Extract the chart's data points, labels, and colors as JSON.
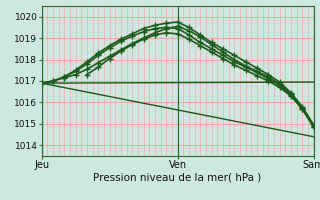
{
  "xlabel": "Pression niveau de la mer( hPa )",
  "bg_color": "#cce8e0",
  "plot_bg_color": "#cce8e0",
  "grid_color_h": "#ff9999",
  "grid_color_v": "#ff9999",
  "line_color": "#1a5c1a",
  "ylim": [
    1013.5,
    1020.5
  ],
  "yticks": [
    1014,
    1015,
    1016,
    1017,
    1018,
    1019,
    1020
  ],
  "xtick_labels": [
    "Jeu",
    "Ven",
    "Sam"
  ],
  "xtick_positions": [
    0,
    24,
    48
  ],
  "vline_positions": [
    0,
    24,
    48
  ],
  "series": [
    {
      "x": [
        0,
        2,
        4,
        6,
        8,
        10,
        12,
        14,
        16,
        18,
        20,
        22,
        24,
        26,
        28,
        30,
        32,
        34,
        36,
        38,
        40,
        42,
        44,
        46,
        48
      ],
      "y": [
        1016.9,
        1017.0,
        1017.15,
        1017.3,
        1017.55,
        1017.85,
        1018.15,
        1018.45,
        1018.75,
        1019.0,
        1019.25,
        1019.45,
        1019.55,
        1019.35,
        1019.05,
        1018.7,
        1018.35,
        1018.0,
        1017.7,
        1017.45,
        1017.2,
        1016.85,
        1016.4,
        1015.75,
        1014.9
      ],
      "marker": "+",
      "linewidth": 1.2,
      "markersize": 4,
      "linestyle": "-"
    },
    {
      "x": [
        0,
        2,
        4,
        6,
        8,
        10,
        12,
        14,
        16,
        18,
        20,
        22,
        24,
        26,
        28,
        30,
        32,
        34,
        36,
        38,
        40,
        42,
        44,
        46,
        48
      ],
      "y": [
        1016.9,
        1017.0,
        1017.2,
        1017.5,
        1017.9,
        1018.3,
        1018.65,
        1018.95,
        1019.2,
        1019.45,
        1019.6,
        1019.7,
        1019.75,
        1019.5,
        1019.15,
        1018.8,
        1018.5,
        1018.2,
        1017.9,
        1017.6,
        1017.3,
        1016.95,
        1016.45,
        1015.8,
        1014.95
      ],
      "marker": "+",
      "linewidth": 1.2,
      "markersize": 4,
      "linestyle": "-"
    },
    {
      "x": [
        4,
        6,
        8,
        10,
        12,
        14,
        16,
        18,
        20,
        22,
        24,
        26,
        28,
        30,
        32,
        34,
        36,
        38,
        40,
        42,
        44,
        46,
        48
      ],
      "y": [
        1017.2,
        1017.45,
        1017.8,
        1018.2,
        1018.55,
        1018.85,
        1019.1,
        1019.3,
        1019.45,
        1019.5,
        1019.45,
        1019.15,
        1018.8,
        1018.5,
        1018.2,
        1017.9,
        1017.65,
        1017.4,
        1017.1,
        1016.8,
        1016.35,
        1015.7,
        1014.85
      ],
      "marker": "+",
      "linewidth": 1.2,
      "markersize": 4,
      "linestyle": "-"
    },
    {
      "x": [
        8,
        10,
        12,
        14,
        16,
        18,
        20,
        22,
        24,
        26,
        28,
        30,
        32,
        34,
        36,
        38,
        40,
        42,
        44,
        46,
        48
      ],
      "y": [
        1017.3,
        1017.65,
        1018.05,
        1018.4,
        1018.7,
        1018.95,
        1019.15,
        1019.25,
        1019.2,
        1018.95,
        1018.65,
        1018.35,
        1018.05,
        1017.75,
        1017.5,
        1017.25,
        1017.0,
        1016.7,
        1016.3,
        1015.7,
        1014.85
      ],
      "marker": "+",
      "linewidth": 1.2,
      "markersize": 4,
      "linestyle": "-"
    },
    {
      "x": [
        0,
        48
      ],
      "y": [
        1016.9,
        1016.95
      ],
      "marker": null,
      "linewidth": 1.0,
      "markersize": 0,
      "linestyle": "-"
    },
    {
      "x": [
        0,
        48
      ],
      "y": [
        1016.9,
        1014.4
      ],
      "marker": null,
      "linewidth": 1.0,
      "markersize": 0,
      "linestyle": "-"
    }
  ]
}
